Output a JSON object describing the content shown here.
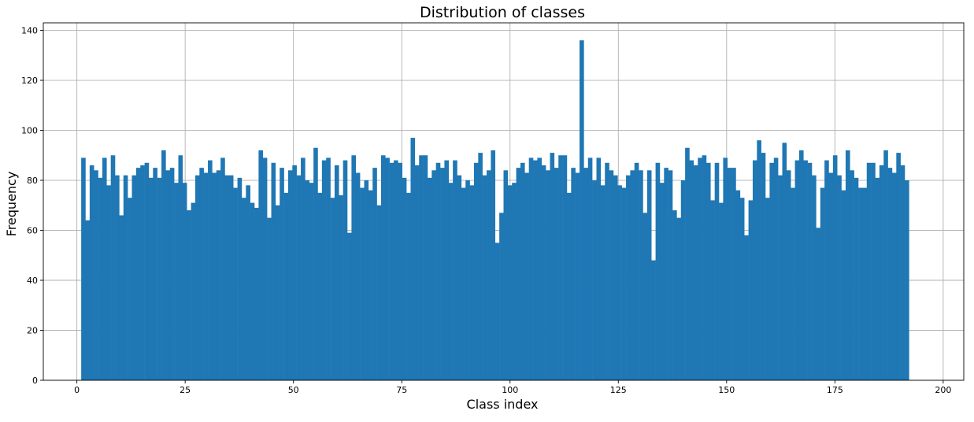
{
  "chart_data": {
    "type": "bar",
    "title": "Distribution of classes",
    "xlabel": "Class index",
    "ylabel": "Frequency",
    "xlim": [
      -7.75,
      204.75
    ],
    "ylim": [
      0,
      143
    ],
    "xticks": [
      0,
      25,
      50,
      75,
      100,
      125,
      150,
      175,
      200
    ],
    "yticks": [
      0,
      20,
      40,
      60,
      80,
      100,
      120,
      140
    ],
    "grid": true,
    "color": "#1f77b4",
    "bin_width": 0.975,
    "x_start": 1,
    "values": [
      89,
      64,
      86,
      84,
      81,
      89,
      78,
      90,
      82,
      66,
      82,
      73,
      82,
      85,
      86,
      87,
      81,
      85,
      81,
      92,
      84,
      85,
      79,
      90,
      79,
      68,
      71,
      82,
      85,
      83,
      88,
      83,
      84,
      89,
      82,
      82,
      77,
      81,
      73,
      78,
      71,
      69,
      92,
      89,
      65,
      87,
      70,
      85,
      75,
      84,
      86,
      82,
      89,
      80,
      79,
      93,
      75,
      88,
      89,
      73,
      86,
      74,
      88,
      59,
      90,
      83,
      77,
      80,
      76,
      85,
      70,
      90,
      89,
      87,
      88,
      87,
      81,
      75,
      97,
      86,
      90,
      90,
      81,
      84,
      87,
      85,
      88,
      79,
      88,
      82,
      77,
      80,
      78,
      87,
      91,
      82,
      84,
      92,
      55,
      67,
      84,
      78,
      79,
      85,
      87,
      83,
      89,
      88,
      89,
      86,
      84,
      91,
      85,
      90,
      90,
      75,
      85,
      83,
      136,
      85,
      89,
      80,
      89,
      78,
      87,
      84,
      82,
      78,
      77,
      82,
      84,
      87,
      84,
      67,
      84,
      48,
      87,
      79,
      85,
      84,
      68,
      65,
      80,
      93,
      88,
      86,
      89,
      90,
      87,
      72,
      87,
      71,
      89,
      85,
      85,
      76,
      73,
      58,
      72,
      88,
      96,
      91,
      73,
      87,
      89,
      82,
      95,
      84,
      77,
      88,
      92,
      88,
      87,
      82,
      61,
      77,
      88,
      83,
      90,
      82,
      76,
      92,
      84,
      81,
      77,
      77,
      87,
      87,
      81,
      86,
      92,
      85,
      83,
      91,
      86,
      80
    ]
  }
}
